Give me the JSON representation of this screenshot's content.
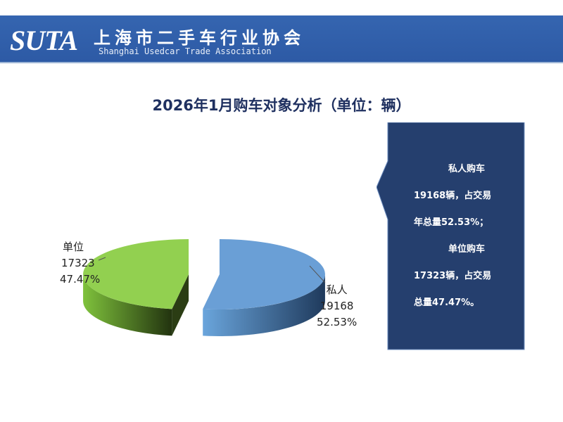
{
  "header": {
    "logo": "SUTA",
    "name_cn": "上海市二手车行业协会",
    "name_en": "Shanghai Usedcar Trade Association"
  },
  "chart_data": {
    "type": "pie",
    "title": "2026年1月购车对象分析（单位：辆）",
    "slices": [
      {
        "label": "私人",
        "value": 19168,
        "percent": "52.53%",
        "color": "#5b9bd5"
      },
      {
        "label": "单位",
        "value": 17323,
        "percent": "47.47%",
        "color": "#92d050"
      }
    ],
    "style": "3d-exploded"
  },
  "callout": {
    "lines": [
      "私人购车",
      "19168辆，占交易",
      "年总量52.53%；",
      "单位购车",
      "17323辆，占交易",
      "总量47.47%。"
    ],
    "color": "#253f6e"
  }
}
